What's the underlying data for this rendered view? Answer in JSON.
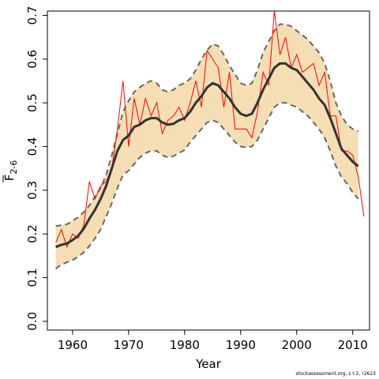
{
  "chart_data": {
    "type": "line",
    "xlabel": "Year",
    "ylabel_main": "F",
    "ylabel_sub": "2-6",
    "xlim": [
      1955.5,
      2013
    ],
    "ylim": [
      -0.02,
      0.71
    ],
    "xticks": [
      "1960",
      "1970",
      "1980",
      "1990",
      "2000",
      "2010"
    ],
    "yticks": [
      "0.0",
      "0.1",
      "0.2",
      "0.3",
      "0.4",
      "0.5",
      "0.6",
      "0.7"
    ],
    "colors": {
      "band": "#f5deb3",
      "bounds": "#666666",
      "estimate": "#333333",
      "observed": "#ff0000"
    },
    "series": [
      {
        "role": "band_upper",
        "x": [
          1957,
          1958,
          1959,
          1960,
          1961,
          1962,
          1963,
          1964,
          1965,
          1966,
          1967,
          1968,
          1969,
          1970,
          1971,
          1972,
          1973,
          1974,
          1975,
          1976,
          1977,
          1978,
          1979,
          1980,
          1981,
          1982,
          1983,
          1984,
          1985,
          1986,
          1987,
          1988,
          1989,
          1990,
          1991,
          1992,
          1993,
          1994,
          1995,
          1996,
          1997,
          1998,
          1999,
          2000,
          2001,
          2002,
          2003,
          2004,
          2005,
          2006,
          2007,
          2008,
          2009,
          2010,
          2011
        ],
        "y": [
          0.218,
          0.22,
          0.222,
          0.23,
          0.238,
          0.25,
          0.265,
          0.285,
          0.305,
          0.335,
          0.38,
          0.43,
          0.48,
          0.505,
          0.525,
          0.535,
          0.545,
          0.55,
          0.545,
          0.53,
          0.525,
          0.53,
          0.54,
          0.545,
          0.555,
          0.575,
          0.6,
          0.62,
          0.635,
          0.63,
          0.61,
          0.585,
          0.565,
          0.545,
          0.54,
          0.545,
          0.575,
          0.615,
          0.64,
          0.665,
          0.68,
          0.68,
          0.675,
          0.665,
          0.655,
          0.645,
          0.63,
          0.615,
          0.59,
          0.55,
          0.5,
          0.47,
          0.45,
          0.44,
          0.435
        ]
      },
      {
        "role": "band_lower",
        "x": [
          1957,
          1958,
          1959,
          1960,
          1961,
          1962,
          1963,
          1964,
          1965,
          1966,
          1967,
          1968,
          1969,
          1970,
          1971,
          1972,
          1973,
          1974,
          1975,
          1976,
          1977,
          1978,
          1979,
          1980,
          1981,
          1982,
          1983,
          1984,
          1985,
          1986,
          1987,
          1988,
          1989,
          1990,
          1991,
          1992,
          1993,
          1994,
          1995,
          1996,
          1997,
          1998,
          1999,
          2000,
          2001,
          2002,
          2003,
          2004,
          2005,
          2006,
          2007,
          2008,
          2009,
          2010,
          2011
        ],
        "y": [
          0.12,
          0.13,
          0.135,
          0.14,
          0.148,
          0.158,
          0.172,
          0.19,
          0.21,
          0.24,
          0.27,
          0.305,
          0.335,
          0.345,
          0.36,
          0.375,
          0.385,
          0.39,
          0.39,
          0.38,
          0.375,
          0.378,
          0.385,
          0.392,
          0.41,
          0.425,
          0.44,
          0.455,
          0.46,
          0.455,
          0.44,
          0.425,
          0.41,
          0.4,
          0.398,
          0.4,
          0.415,
          0.44,
          0.465,
          0.49,
          0.5,
          0.5,
          0.495,
          0.49,
          0.48,
          0.47,
          0.455,
          0.44,
          0.42,
          0.39,
          0.355,
          0.33,
          0.315,
          0.295,
          0.28
        ]
      },
      {
        "role": "estimate",
        "x": [
          1957,
          1958,
          1959,
          1960,
          1961,
          1962,
          1963,
          1964,
          1965,
          1966,
          1967,
          1968,
          1969,
          1970,
          1971,
          1972,
          1973,
          1974,
          1975,
          1976,
          1977,
          1978,
          1979,
          1980,
          1981,
          1982,
          1983,
          1984,
          1985,
          1986,
          1987,
          1988,
          1989,
          1990,
          1991,
          1992,
          1993,
          1994,
          1995,
          1996,
          1997,
          1998,
          1999,
          2000,
          2001,
          2002,
          2003,
          2004,
          2005,
          2006,
          2007,
          2008,
          2009,
          2010,
          2011
        ],
        "y": [
          0.17,
          0.175,
          0.178,
          0.186,
          0.196,
          0.212,
          0.235,
          0.255,
          0.28,
          0.31,
          0.35,
          0.39,
          0.415,
          0.425,
          0.445,
          0.45,
          0.46,
          0.465,
          0.465,
          0.455,
          0.45,
          0.452,
          0.46,
          0.465,
          0.48,
          0.5,
          0.515,
          0.535,
          0.545,
          0.54,
          0.525,
          0.51,
          0.49,
          0.475,
          0.47,
          0.475,
          0.5,
          0.53,
          0.555,
          0.58,
          0.59,
          0.59,
          0.58,
          0.575,
          0.56,
          0.545,
          0.53,
          0.51,
          0.495,
          0.465,
          0.43,
          0.395,
          0.38,
          0.365,
          0.355
        ]
      },
      {
        "role": "observed",
        "x": [
          1957,
          1958,
          1959,
          1960,
          1961,
          1962,
          1963,
          1964,
          1965,
          1966,
          1967,
          1968,
          1969,
          1970,
          1971,
          1972,
          1973,
          1974,
          1975,
          1976,
          1977,
          1978,
          1979,
          1980,
          1981,
          1982,
          1983,
          1984,
          1985,
          1986,
          1987,
          1988,
          1989,
          1990,
          1991,
          1992,
          1993,
          1994,
          1995,
          1996,
          1997,
          1998,
          1999,
          2000,
          2001,
          2002,
          2003,
          2004,
          2005,
          2006,
          2007,
          2008,
          2009,
          2010,
          2011,
          2012
        ],
        "y": [
          0.18,
          0.21,
          0.17,
          0.2,
          0.19,
          0.22,
          0.32,
          0.28,
          0.31,
          0.32,
          0.35,
          0.44,
          0.55,
          0.4,
          0.51,
          0.45,
          0.51,
          0.47,
          0.5,
          0.43,
          0.46,
          0.47,
          0.49,
          0.46,
          0.5,
          0.55,
          0.49,
          0.62,
          0.6,
          0.58,
          0.49,
          0.57,
          0.44,
          0.44,
          0.44,
          0.42,
          0.48,
          0.57,
          0.54,
          0.71,
          0.61,
          0.65,
          0.58,
          0.61,
          0.57,
          0.58,
          0.59,
          0.54,
          0.57,
          0.47,
          0.47,
          0.39,
          0.39,
          0.38,
          0.33,
          0.24
        ]
      }
    ],
    "footer": "stockassessment.org, s t 2, r2623"
  }
}
